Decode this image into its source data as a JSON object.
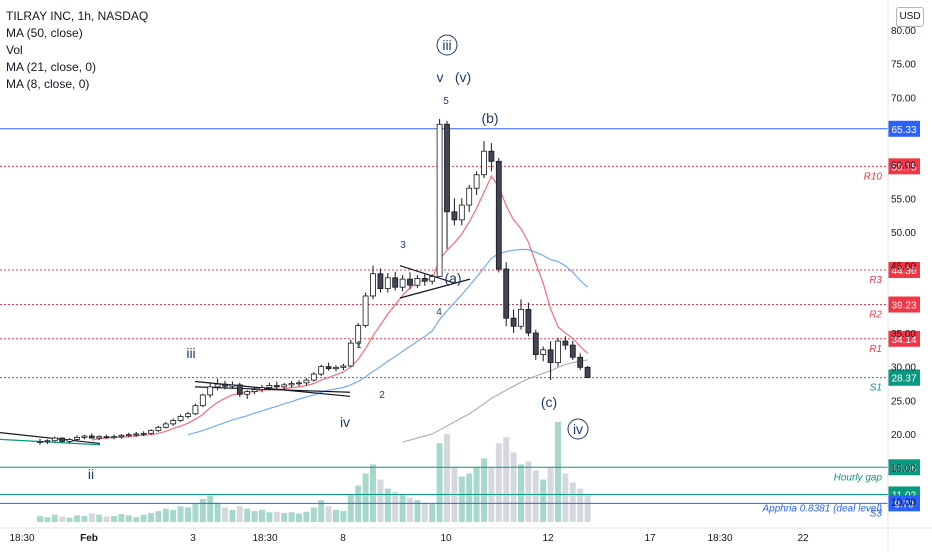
{
  "chart_data": {
    "type": "candlestick",
    "title": "TILRAY INC, 1h, NASDAQ",
    "indicators": [
      "Vol",
      "MA (50, close)",
      "MA (21, close, 0)",
      "MA (8, close, 0)"
    ],
    "legend_lines": [
      "TILRAY INC, 1h, NASDAQ",
      "MA (50, close)",
      "Vol",
      "MA (21, close, 0)",
      "MA (8, close, 0)"
    ],
    "currency": "USD",
    "y_axis": {
      "ticks": [
        "80.00",
        "75.00",
        "70.00",
        "60.00",
        "55.00",
        "50.00",
        "45.00",
        "35.00",
        "30.00",
        "25.00",
        "20.00",
        "15.00",
        "10.00"
      ],
      "ylim": [
        8.5,
        82
      ]
    },
    "x_axis": {
      "ticks": [
        "18:30",
        "Feb",
        "3",
        "18:30",
        "8",
        "10",
        "12",
        "17",
        "18:30",
        "22"
      ]
    },
    "price_levels": [
      {
        "value": 65.33,
        "label": "65.33",
        "style": "solid",
        "color": "#2962ff",
        "name": ""
      },
      {
        "value": 59.75,
        "label": "59.75",
        "style": "dotted",
        "color": "#f23645",
        "name": "R10"
      },
      {
        "value": 44.36,
        "label": "44.36",
        "style": "dotted",
        "color": "#f23645",
        "name": "R3"
      },
      {
        "value": 39.23,
        "label": "39.23",
        "style": "dotted",
        "color": "#f23645",
        "name": "R2"
      },
      {
        "value": 34.14,
        "label": "34.14",
        "style": "dotted",
        "color": "#f23645",
        "name": "R1"
      },
      {
        "value": 28.37,
        "label": "28.37",
        "style": "dotted",
        "color": "#089981",
        "name": "S1"
      },
      {
        "value": 15.06,
        "label": "15.06",
        "style": "solid",
        "color": "#089981",
        "name": "Hourly gap"
      },
      {
        "value": 11.02,
        "label": "11.02",
        "style": "solid",
        "color": "#089981",
        "name": ""
      },
      {
        "value": 9.7,
        "label": "9.70",
        "style": "solid",
        "color": "#2962ff",
        "name": "S3"
      }
    ],
    "extra_labels": [
      {
        "text": "Apphria 0.8381 (deal level)",
        "color": "#2962ff"
      }
    ],
    "last_price": {
      "value": 28.37,
      "label": "28.37",
      "color": "#089981"
    },
    "candles": [
      [
        18.8,
        19.3,
        18.4,
        18.9
      ],
      [
        18.9,
        19.2,
        18.5,
        19.0
      ],
      [
        19.0,
        19.6,
        18.8,
        19.4
      ],
      [
        19.4,
        19.5,
        18.7,
        18.9
      ],
      [
        18.9,
        19.4,
        18.6,
        19.2
      ],
      [
        19.2,
        19.8,
        19.0,
        19.5
      ],
      [
        19.5,
        19.9,
        19.2,
        19.7
      ],
      [
        19.7,
        20.1,
        19.3,
        19.4
      ],
      [
        19.4,
        19.8,
        19.1,
        19.6
      ],
      [
        19.6,
        19.9,
        19.3,
        19.5
      ],
      [
        19.5,
        19.9,
        19.2,
        19.6
      ],
      [
        19.6,
        20.0,
        19.3,
        19.8
      ],
      [
        19.8,
        20.2,
        19.5,
        19.9
      ],
      [
        19.9,
        20.3,
        19.6,
        20.0
      ],
      [
        20.0,
        20.4,
        19.7,
        20.1
      ],
      [
        20.1,
        20.7,
        19.9,
        20.5
      ],
      [
        20.5,
        21.2,
        20.3,
        21.0
      ],
      [
        21.0,
        21.8,
        20.8,
        21.5
      ],
      [
        21.5,
        22.3,
        21.2,
        22.0
      ],
      [
        22.0,
        22.9,
        21.8,
        22.6
      ],
      [
        22.6,
        23.3,
        22.3,
        23.0
      ],
      [
        23.0,
        24.5,
        22.8,
        24.2
      ],
      [
        24.2,
        26.0,
        24.0,
        25.8
      ],
      [
        25.8,
        27.6,
        25.4,
        27.0
      ],
      [
        27.0,
        28.2,
        26.5,
        27.4
      ],
      [
        27.4,
        27.9,
        26.6,
        27.1
      ],
      [
        27.1,
        27.8,
        26.7,
        27.3
      ],
      [
        27.3,
        27.6,
        25.5,
        25.9
      ],
      [
        25.9,
        26.5,
        25.2,
        26.3
      ],
      [
        26.3,
        27.0,
        25.9,
        26.6
      ],
      [
        26.6,
        27.3,
        26.2,
        26.9
      ],
      [
        26.9,
        27.6,
        26.5,
        27.2
      ],
      [
        27.2,
        27.8,
        26.7,
        27.0
      ],
      [
        27.0,
        27.6,
        26.6,
        27.3
      ],
      [
        27.3,
        27.9,
        26.9,
        27.5
      ],
      [
        27.5,
        28.0,
        27.1,
        27.6
      ],
      [
        27.6,
        28.3,
        27.2,
        28.0
      ],
      [
        28.0,
        29.2,
        27.8,
        28.9
      ],
      [
        28.9,
        30.3,
        28.6,
        30.0
      ],
      [
        30.0,
        30.6,
        29.4,
        29.7
      ],
      [
        29.7,
        30.2,
        29.3,
        29.9
      ],
      [
        29.9,
        30.4,
        29.5,
        30.1
      ],
      [
        30.1,
        34.0,
        29.9,
        33.5
      ],
      [
        33.5,
        36.5,
        33.0,
        36.1
      ],
      [
        36.1,
        41.0,
        35.8,
        40.5
      ],
      [
        40.5,
        45.0,
        40.0,
        43.8
      ],
      [
        43.8,
        44.6,
        41.0,
        41.6
      ],
      [
        41.6,
        43.9,
        41.0,
        43.2
      ],
      [
        43.2,
        44.1,
        41.3,
        41.8
      ],
      [
        41.8,
        43.6,
        41.2,
        43.0
      ],
      [
        43.0,
        44.0,
        41.5,
        42.1
      ],
      [
        42.1,
        43.6,
        41.7,
        43.1
      ],
      [
        43.1,
        43.8,
        42.0,
        42.7
      ],
      [
        42.7,
        43.7,
        42.2,
        43.4
      ],
      [
        43.4,
        66.8,
        43.4,
        66.0
      ],
      [
        66.0,
        66.5,
        47.5,
        53.0
      ],
      [
        53.0,
        55.0,
        51.0,
        51.8
      ],
      [
        51.8,
        55.0,
        51.0,
        54.0
      ],
      [
        54.0,
        57.0,
        53.0,
        56.5
      ],
      [
        56.5,
        59.0,
        55.5,
        58.5
      ],
      [
        58.5,
        63.5,
        58.0,
        62.0
      ],
      [
        62.0,
        63.2,
        59.0,
        60.5
      ],
      [
        60.5,
        61.0,
        44.0,
        44.5
      ],
      [
        44.5,
        45.5,
        36.0,
        37.2
      ],
      [
        37.2,
        38.5,
        35.0,
        36.0
      ],
      [
        36.0,
        40.0,
        35.5,
        38.5
      ],
      [
        38.5,
        39.5,
        34.5,
        35.0
      ],
      [
        35.0,
        35.5,
        31.0,
        31.8
      ],
      [
        31.8,
        33.0,
        30.8,
        32.5
      ],
      [
        32.5,
        33.8,
        28.0,
        30.6
      ],
      [
        30.6,
        34.3,
        30.0,
        33.8
      ],
      [
        33.8,
        34.5,
        32.5,
        33.2
      ],
      [
        33.2,
        33.8,
        31.0,
        31.4
      ],
      [
        31.4,
        32.0,
        29.5,
        29.9
      ],
      [
        29.9,
        30.1,
        28.3,
        28.4
      ]
    ],
    "ma_series": [
      {
        "name": "MA (8, close, 0)",
        "color": "#f7525f",
        "values": [
          null,
          null,
          null,
          null,
          null,
          null,
          null,
          19.1,
          19.3,
          19.4,
          19.5,
          19.5,
          19.6,
          19.7,
          19.8,
          19.9,
          20.1,
          20.4,
          20.8,
          21.2,
          21.6,
          22.2,
          22.9,
          23.9,
          24.7,
          25.3,
          25.8,
          26.0,
          26.2,
          26.3,
          26.5,
          26.6,
          26.6,
          26.7,
          26.9,
          27.0,
          27.2,
          27.5,
          28.0,
          28.4,
          28.8,
          29.2,
          30.0,
          31.1,
          32.7,
          34.6,
          36.2,
          37.8,
          39.2,
          40.6,
          41.7,
          42.5,
          42.9,
          43.0,
          45.9,
          47.3,
          48.4,
          49.7,
          51.5,
          53.5,
          55.9,
          58.3,
          56.7,
          53.9,
          51.8,
          50.5,
          48.5,
          45.4,
          42.4,
          38.6,
          35.9,
          35.0,
          34.2,
          33.0,
          32.0
        ]
      },
      {
        "name": "MA (21, close, 0)",
        "color": "#5b9cf6",
        "values": [
          null,
          null,
          null,
          null,
          null,
          null,
          null,
          null,
          null,
          null,
          null,
          null,
          null,
          null,
          null,
          null,
          null,
          null,
          null,
          null,
          19.9,
          20.2,
          20.5,
          20.9,
          21.3,
          21.7,
          22.1,
          22.4,
          22.7,
          23.1,
          23.4,
          23.8,
          24.1,
          24.5,
          24.8,
          25.2,
          25.5,
          25.8,
          26.2,
          26.5,
          26.7,
          26.9,
          27.3,
          27.8,
          28.5,
          29.3,
          30.0,
          30.8,
          31.5,
          32.3,
          33.0,
          33.8,
          34.5,
          35.3,
          37.0,
          38.3,
          39.5,
          40.7,
          42.0,
          43.3,
          44.7,
          46.1,
          46.8,
          47.1,
          47.3,
          47.4,
          47.4,
          47.0,
          46.5,
          45.9,
          45.6,
          45.0,
          44.0,
          42.8,
          41.8
        ]
      },
      {
        "name": "MA (50, close)",
        "color": "#a4a4a4",
        "values": [
          null,
          null,
          null,
          null,
          null,
          null,
          null,
          null,
          null,
          null,
          null,
          null,
          null,
          null,
          null,
          null,
          null,
          null,
          null,
          null,
          null,
          null,
          null,
          null,
          null,
          null,
          null,
          null,
          null,
          null,
          null,
          null,
          null,
          null,
          null,
          null,
          null,
          null,
          null,
          null,
          null,
          null,
          null,
          null,
          null,
          null,
          null,
          null,
          null,
          18.8,
          19.1,
          19.4,
          19.7,
          20.0,
          20.6,
          21.2,
          21.8,
          22.4,
          23.0,
          23.7,
          24.5,
          25.3,
          25.9,
          26.5,
          27.1,
          27.7,
          28.2,
          28.6,
          29.0,
          29.4,
          29.9,
          30.3,
          30.6,
          30.8,
          31.0
        ]
      }
    ],
    "volume": [
      1.0,
      0.8,
      1.2,
      0.9,
      0.7,
      1.1,
      1.0,
      1.4,
      1.2,
      0.9,
      1.0,
      1.3,
      1.1,
      0.8,
      1.2,
      1.5,
      1.8,
      2.2,
      2.0,
      2.6,
      2.4,
      3.0,
      3.8,
      4.4,
      3.2,
      2.4,
      2.0,
      2.6,
      2.2,
      1.8,
      2.0,
      1.6,
      1.7,
      1.5,
      1.6,
      1.4,
      1.7,
      2.4,
      3.6,
      2.6,
      2.0,
      1.8,
      4.6,
      6.0,
      8.0,
      9.5,
      7.0,
      5.5,
      5.0,
      4.6,
      4.0,
      3.6,
      3.2,
      3.0,
      13.0,
      14.5,
      9.0,
      7.5,
      8.0,
      9.0,
      10.5,
      9.0,
      13.0,
      14.0,
      11.5,
      9.5,
      10.0,
      8.5,
      7.0,
      9.0,
      16.5,
      8.0,
      6.5,
      5.5,
      4.5
    ],
    "wave_labels": [
      {
        "text": "iii",
        "circled": true
      },
      {
        "text": "v",
        "circled": false
      },
      {
        "text": "(v)",
        "circled": false
      },
      {
        "text": "5",
        "circled": false
      },
      {
        "text": "(b)",
        "circled": false
      },
      {
        "text": "3",
        "circled": false
      },
      {
        "text": "(a)",
        "circled": false
      },
      {
        "text": "4",
        "circled": false
      },
      {
        "text": "1",
        "circled": false
      },
      {
        "text": "2",
        "circled": false
      },
      {
        "text": "iii",
        "circled": false
      },
      {
        "text": "iv",
        "circled": false
      },
      {
        "text": "ii",
        "circled": false
      },
      {
        "text": "(c)",
        "circled": false
      },
      {
        "text": "iv",
        "circled": true
      }
    ]
  }
}
